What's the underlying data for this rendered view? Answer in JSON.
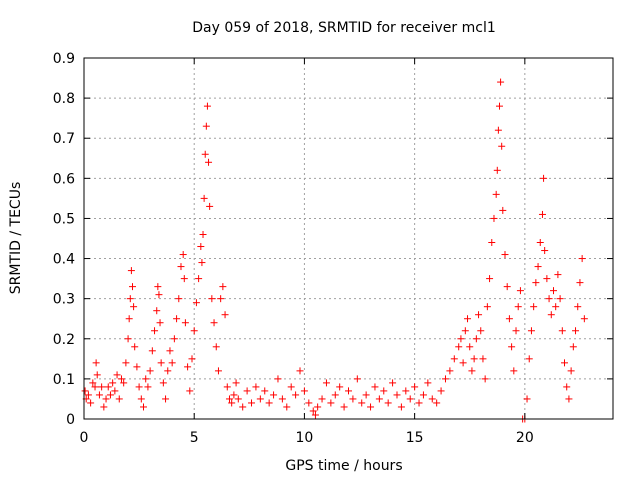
{
  "chart_data": {
    "type": "scatter",
    "title": "Day 059 of 2018, SRMTID for receiver mcl1",
    "xlabel": "GPS time / hours",
    "ylabel": "SRMTID / TECUs",
    "xlim": [
      0,
      24
    ],
    "ylim": [
      0,
      0.9
    ],
    "x_ticks": [
      0,
      5,
      10,
      15,
      20
    ],
    "x_tick_labels": [
      "0",
      "5",
      "10",
      "15",
      "20"
    ],
    "y_ticks": [
      0,
      0.1,
      0.2,
      0.3,
      0.4,
      0.5,
      0.6,
      0.7,
      0.8,
      0.9
    ],
    "y_tick_labels": [
      "0",
      "0.1",
      "0.2",
      "0.3",
      "0.4",
      "0.5",
      "0.6",
      "0.7",
      "0.8",
      "0.9"
    ],
    "grid": true,
    "marker": "+",
    "series": [
      {
        "name": "SRMTID",
        "color": "#ff0000",
        "x": [
          0.05,
          0.1,
          0.2,
          0.3,
          0.4,
          0.5,
          0.55,
          0.6,
          0.7,
          0.8,
          0.9,
          1.0,
          1.1,
          1.2,
          1.3,
          1.4,
          1.5,
          1.6,
          1.7,
          1.8,
          1.9,
          2.0,
          2.05,
          2.1,
          2.15,
          2.2,
          2.25,
          2.3,
          2.4,
          2.5,
          2.6,
          2.7,
          2.8,
          2.9,
          3.0,
          3.1,
          3.2,
          3.3,
          3.35,
          3.4,
          3.45,
          3.5,
          3.6,
          3.7,
          3.8,
          3.9,
          4.0,
          4.1,
          4.2,
          4.3,
          4.4,
          4.5,
          4.55,
          4.6,
          4.7,
          4.8,
          4.9,
          5.0,
          5.1,
          5.2,
          5.3,
          5.35,
          5.4,
          5.45,
          5.5,
          5.55,
          5.6,
          5.65,
          5.7,
          5.8,
          5.9,
          6.0,
          6.1,
          6.2,
          6.3,
          6.4,
          6.5,
          6.6,
          6.7,
          6.8,
          6.9,
          7.0,
          7.2,
          7.4,
          7.6,
          7.8,
          8.0,
          8.2,
          8.4,
          8.6,
          8.8,
          9.0,
          9.2,
          9.4,
          9.6,
          9.8,
          10.0,
          10.2,
          10.4,
          10.5,
          10.6,
          10.8,
          11.0,
          11.2,
          11.4,
          11.6,
          11.8,
          12.0,
          12.2,
          12.4,
          12.6,
          12.8,
          13.0,
          13.2,
          13.4,
          13.6,
          13.8,
          14.0,
          14.2,
          14.4,
          14.6,
          14.8,
          15.0,
          15.2,
          15.4,
          15.6,
          15.8,
          16.0,
          16.2,
          16.4,
          16.6,
          16.8,
          17.0,
          17.1,
          17.2,
          17.3,
          17.4,
          17.5,
          17.6,
          17.7,
          17.8,
          17.9,
          18.0,
          18.1,
          18.2,
          18.3,
          18.4,
          18.5,
          18.6,
          18.7,
          18.75,
          18.8,
          18.85,
          18.9,
          18.95,
          19.0,
          19.1,
          19.2,
          19.3,
          19.4,
          19.5,
          19.6,
          19.7,
          19.8,
          19.9,
          20.0,
          20.1,
          20.2,
          20.3,
          20.4,
          20.5,
          20.6,
          20.7,
          20.8,
          20.85,
          20.9,
          21.0,
          21.1,
          21.2,
          21.3,
          21.4,
          21.5,
          21.6,
          21.7,
          21.8,
          21.9,
          22.0,
          22.1,
          22.2,
          22.3,
          22.4,
          22.5,
          22.6,
          22.7
        ],
        "y": [
          0.07,
          0.05,
          0.06,
          0.04,
          0.09,
          0.08,
          0.14,
          0.11,
          0.06,
          0.08,
          0.03,
          0.05,
          0.08,
          0.06,
          0.09,
          0.07,
          0.11,
          0.05,
          0.1,
          0.09,
          0.14,
          0.2,
          0.25,
          0.3,
          0.37,
          0.33,
          0.28,
          0.18,
          0.13,
          0.08,
          0.05,
          0.03,
          0.1,
          0.08,
          0.12,
          0.17,
          0.22,
          0.27,
          0.33,
          0.31,
          0.24,
          0.14,
          0.09,
          0.05,
          0.12,
          0.17,
          0.14,
          0.2,
          0.25,
          0.3,
          0.38,
          0.41,
          0.35,
          0.24,
          0.13,
          0.07,
          0.15,
          0.22,
          0.29,
          0.35,
          0.43,
          0.39,
          0.46,
          0.55,
          0.66,
          0.73,
          0.78,
          0.64,
          0.53,
          0.3,
          0.24,
          0.18,
          0.12,
          0.3,
          0.33,
          0.26,
          0.08,
          0.05,
          0.04,
          0.06,
          0.09,
          0.05,
          0.03,
          0.07,
          0.04,
          0.08,
          0.05,
          0.07,
          0.04,
          0.06,
          0.1,
          0.05,
          0.03,
          0.08,
          0.06,
          0.12,
          0.07,
          0.04,
          0.02,
          0.01,
          0.03,
          0.05,
          0.09,
          0.04,
          0.06,
          0.08,
          0.03,
          0.07,
          0.05,
          0.1,
          0.04,
          0.06,
          0.03,
          0.08,
          0.05,
          0.07,
          0.04,
          0.09,
          0.06,
          0.03,
          0.07,
          0.05,
          0.08,
          0.04,
          0.06,
          0.09,
          0.05,
          0.04,
          0.07,
          0.1,
          0.12,
          0.15,
          0.18,
          0.2,
          0.14,
          0.22,
          0.25,
          0.18,
          0.12,
          0.15,
          0.2,
          0.26,
          0.22,
          0.15,
          0.1,
          0.28,
          0.35,
          0.44,
          0.5,
          0.56,
          0.62,
          0.72,
          0.78,
          0.84,
          0.68,
          0.52,
          0.41,
          0.33,
          0.25,
          0.18,
          0.12,
          0.22,
          0.28,
          0.32,
          0.0,
          0.0,
          0.05,
          0.15,
          0.22,
          0.28,
          0.34,
          0.38,
          0.44,
          0.51,
          0.6,
          0.42,
          0.35,
          0.3,
          0.26,
          0.32,
          0.28,
          0.36,
          0.3,
          0.22,
          0.14,
          0.08,
          0.05,
          0.12,
          0.18,
          0.22,
          0.28,
          0.34,
          0.4,
          0.25
        ]
      }
    ]
  }
}
